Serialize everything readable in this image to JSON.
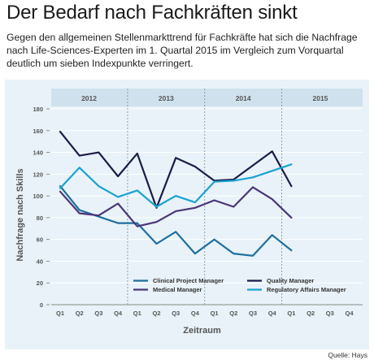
{
  "header": {
    "title": "Der Bedarf nach Fachkräften sinkt",
    "subtitle": "Gegen den allgemeinen Stellenmarkttrend für Fachkräfte hat sich die Nachfrage nach Life-Sciences-Experten im 1. Quartal 2015 im Vergleich zum Vorquartal deutlich um sieben Indexpunkte verringert."
  },
  "source": "Quelle: Hays",
  "chart_data": {
    "type": "line",
    "title": "",
    "xlabel": "Zeitraum",
    "ylabel": "Nachfrage nach Skills",
    "ylim": [
      0,
      180
    ],
    "yticks": [
      0,
      20,
      40,
      60,
      80,
      100,
      120,
      140,
      160,
      180
    ],
    "grid": "horizontal",
    "legend_position": "bottom-right",
    "years": [
      "2012",
      "2013",
      "2014",
      "2015"
    ],
    "categories": [
      "Q1",
      "Q2",
      "Q3",
      "Q4",
      "Q1",
      "Q2",
      "Q3",
      "Q4",
      "Q1",
      "Q2",
      "Q3",
      "Q4",
      "Q1",
      "Q2",
      "Q3",
      "Q4"
    ],
    "series": [
      {
        "name": "Clinical Project Manager",
        "color": "#1f6e9e",
        "values": [
          109,
          87,
          81,
          75,
          75,
          56,
          67,
          47,
          60,
          47,
          45,
          64,
          50,
          null,
          null,
          null
        ]
      },
      {
        "name": "Quality Manager",
        "color": "#1c1c4a",
        "values": [
          159,
          137,
          140,
          118,
          139,
          89,
          135,
          127,
          114,
          115,
          128,
          141,
          109,
          null,
          null,
          null
        ]
      },
      {
        "name": "Medical Manager",
        "color": "#4b3578",
        "values": [
          104,
          84,
          82,
          93,
          72,
          76,
          86,
          89,
          96,
          90,
          108,
          97,
          80,
          null,
          null,
          null
        ]
      },
      {
        "name": "Regulatory Affairs Manager",
        "color": "#1ba3d0",
        "values": [
          107,
          126,
          109,
          99,
          105,
          90,
          100,
          94,
          113,
          114,
          117,
          123,
          129,
          null,
          null,
          null
        ]
      }
    ]
  }
}
